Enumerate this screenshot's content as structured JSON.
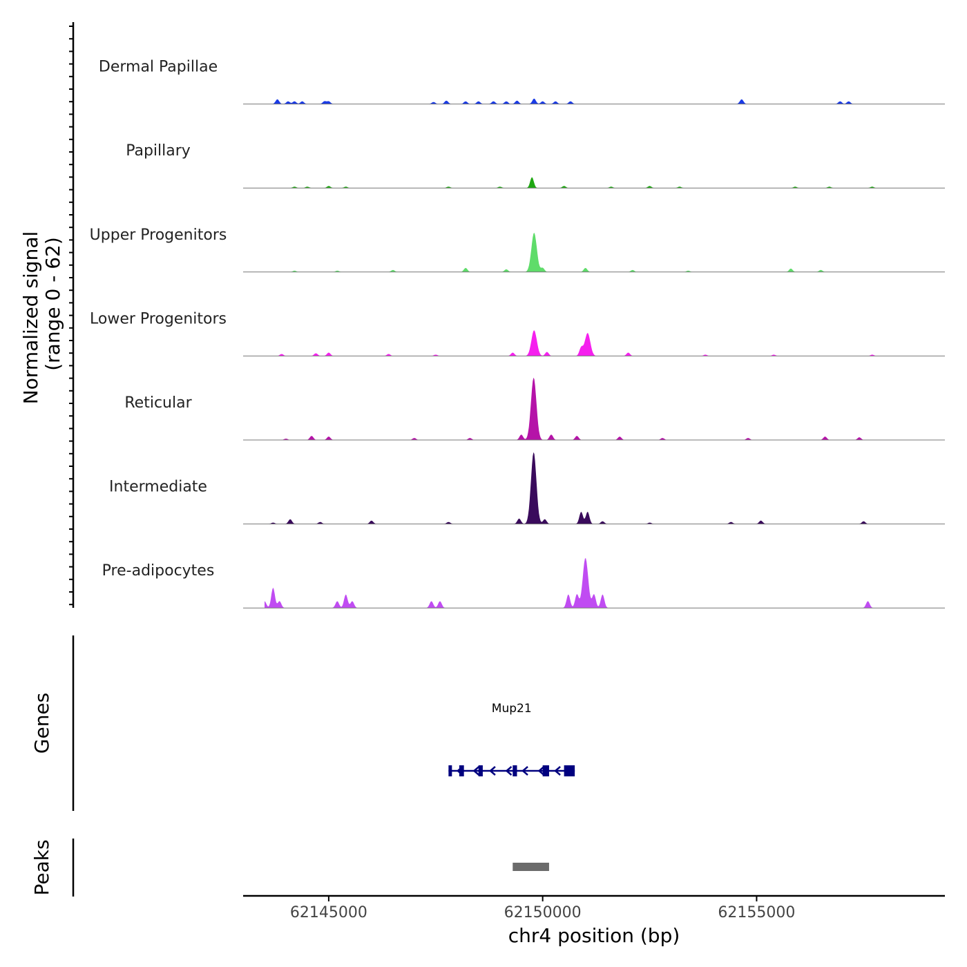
{
  "chart_data": {
    "type": "area",
    "title": "",
    "xlabel": "chr4 position (bp)",
    "ylabel": "Normalized signal",
    "ylabel_sub": "(range 0 - 62)",
    "xlim": [
      62143000,
      62159400
    ],
    "ylim": [
      0,
      62
    ],
    "x_ticks": [
      62145000,
      62150000,
      62155000
    ],
    "x_tick_labels": [
      "62145000",
      "62150000",
      "62155000"
    ],
    "tracks": [
      {
        "name": "Dermal Papillae",
        "color": "#1a3be6",
        "peaks": [
          [
            62143800,
            7
          ],
          [
            62144050,
            4
          ],
          [
            62144200,
            4
          ],
          [
            62144380,
            4
          ],
          [
            62144900,
            4
          ],
          [
            62145000,
            4
          ],
          [
            62147450,
            3
          ],
          [
            62147750,
            5
          ],
          [
            62148200,
            4
          ],
          [
            62148500,
            4
          ],
          [
            62148850,
            4
          ],
          [
            62149150,
            4
          ],
          [
            62149400,
            5
          ],
          [
            62149800,
            8
          ],
          [
            62150000,
            4
          ],
          [
            62150300,
            4
          ],
          [
            62150650,
            4
          ],
          [
            62154650,
            7
          ],
          [
            62156950,
            4
          ],
          [
            62157150,
            4
          ]
        ]
      },
      {
        "name": "Papillary",
        "color": "#1fa712",
        "peaks": [
          [
            62144200,
            2
          ],
          [
            62144500,
            2
          ],
          [
            62145000,
            3
          ],
          [
            62145400,
            2
          ],
          [
            62147800,
            2
          ],
          [
            62149000,
            2
          ],
          [
            62149750,
            16
          ],
          [
            62150500,
            3
          ],
          [
            62151600,
            2
          ],
          [
            62152500,
            3
          ],
          [
            62153200,
            2
          ],
          [
            62155900,
            2
          ],
          [
            62156700,
            2
          ],
          [
            62157700,
            2
          ]
        ]
      },
      {
        "name": "Upper Progenitors",
        "color": "#5fdc6a",
        "peaks": [
          [
            62143200,
            1
          ],
          [
            62144200,
            2
          ],
          [
            62145200,
            2
          ],
          [
            62146500,
            3
          ],
          [
            62148200,
            6
          ],
          [
            62149150,
            4
          ],
          [
            62149800,
            58
          ],
          [
            62150000,
            6
          ],
          [
            62151000,
            6
          ],
          [
            62152100,
            3
          ],
          [
            62153400,
            2
          ],
          [
            62155800,
            5
          ],
          [
            62156500,
            3
          ]
        ]
      },
      {
        "name": "Lower Progenitors",
        "color": "#f520ee",
        "peaks": [
          [
            62143300,
            3
          ],
          [
            62143900,
            3
          ],
          [
            62144700,
            4
          ],
          [
            62145000,
            5
          ],
          [
            62146400,
            3
          ],
          [
            62147500,
            2
          ],
          [
            62149300,
            5
          ],
          [
            62149800,
            38
          ],
          [
            62150100,
            6
          ],
          [
            62150900,
            12
          ],
          [
            62151050,
            34
          ],
          [
            62152000,
            5
          ],
          [
            62153800,
            2
          ],
          [
            62155400,
            2
          ],
          [
            62157700,
            2
          ]
        ]
      },
      {
        "name": "Reticular",
        "color": "#b513a8",
        "peaks": [
          [
            62144000,
            2
          ],
          [
            62144600,
            6
          ],
          [
            62145000,
            5
          ],
          [
            62147000,
            3
          ],
          [
            62148300,
            3
          ],
          [
            62149500,
            8
          ],
          [
            62149790,
            92
          ],
          [
            62150200,
            8
          ],
          [
            62150800,
            6
          ],
          [
            62151800,
            5
          ],
          [
            62152800,
            3
          ],
          [
            62154800,
            3
          ],
          [
            62156600,
            5
          ],
          [
            62157400,
            4
          ]
        ]
      },
      {
        "name": "Intermediate",
        "color": "#3a0b5c",
        "peaks": [
          [
            62143700,
            2
          ],
          [
            62144100,
            7
          ],
          [
            62144800,
            3
          ],
          [
            62146000,
            5
          ],
          [
            62147800,
            3
          ],
          [
            62149450,
            8
          ],
          [
            62149790,
            106
          ],
          [
            62150050,
            7
          ],
          [
            62150900,
            18
          ],
          [
            62151050,
            18
          ],
          [
            62151400,
            4
          ],
          [
            62152500,
            2
          ],
          [
            62154400,
            3
          ],
          [
            62155100,
            5
          ],
          [
            62157500,
            4
          ]
        ]
      },
      {
        "name": "Pre-adipocytes",
        "color": "#c04cf2",
        "peaks": [
          [
            62143500,
            10
          ],
          [
            62143700,
            30
          ],
          [
            62143850,
            10
          ],
          [
            62145200,
            10
          ],
          [
            62145400,
            20
          ],
          [
            62145550,
            10
          ],
          [
            62147400,
            10
          ],
          [
            62147600,
            10
          ],
          [
            62150600,
            20
          ],
          [
            62150800,
            20
          ],
          [
            62151000,
            74
          ],
          [
            62151200,
            20
          ],
          [
            62151400,
            20
          ],
          [
            62157600,
            10
          ]
        ]
      }
    ],
    "genes": [
      {
        "name": "Mup21",
        "start": 62147800,
        "end": 62150750,
        "strand": "-",
        "color": "#00007f",
        "exons": [
          [
            62147800,
            62147880
          ],
          [
            62148050,
            62148160
          ],
          [
            62148500,
            62148600
          ],
          [
            62149300,
            62149400
          ],
          [
            62150000,
            62150150
          ],
          [
            62150500,
            62150750
          ]
        ]
      }
    ],
    "peak_regions": [
      {
        "start": 62149300,
        "end": 62150150,
        "color": "#6b6b6b"
      }
    ],
    "panel_labels": {
      "genes": "Genes",
      "peaks": "Peaks"
    }
  }
}
